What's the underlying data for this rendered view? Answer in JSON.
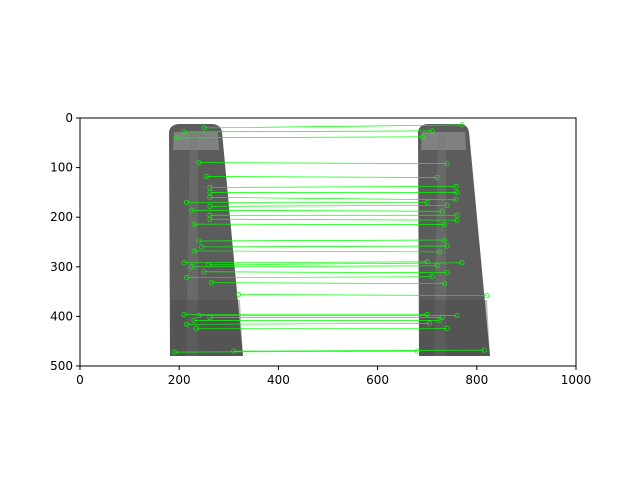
{
  "figure": {
    "axes": {
      "x_ticks": [
        "0",
        "200",
        "400",
        "600",
        "800",
        "1000"
      ],
      "y_ticks": [
        "0",
        "100",
        "200",
        "300",
        "400",
        "500"
      ],
      "x_range": [
        0,
        1000
      ],
      "y_range": [
        500,
        0
      ],
      "grid": false
    },
    "image": {
      "content": "two grayscale photos of a bottle side by side, with green feature-match lines connecting keypoints",
      "background_color": "#ffffff",
      "bottle_color": "#5c5c5c",
      "match_color": "#00ff00",
      "left_bottle_x": [
        180,
        320
      ],
      "right_bottle_x": [
        680,
        820
      ],
      "image_height": 500
    },
    "matches": [
      [
        210,
        28,
        710,
        26
      ],
      [
        250,
        20,
        770,
        14
      ],
      [
        195,
        40,
        690,
        38
      ],
      [
        240,
        90,
        740,
        92
      ],
      [
        255,
        118,
        720,
        120
      ],
      [
        262,
        140,
        758,
        138
      ],
      [
        262,
        150,
        760,
        150
      ],
      [
        262,
        160,
        758,
        165
      ],
      [
        215,
        170,
        700,
        170
      ],
      [
        262,
        178,
        740,
        176
      ],
      [
        225,
        186,
        730,
        188
      ],
      [
        262,
        196,
        760,
        196
      ],
      [
        262,
        204,
        760,
        206
      ],
      [
        230,
        214,
        735,
        215
      ],
      [
        240,
        248,
        735,
        246
      ],
      [
        245,
        260,
        740,
        258
      ],
      [
        230,
        268,
        725,
        270
      ],
      [
        210,
        292,
        700,
        290
      ],
      [
        260,
        296,
        770,
        292
      ],
      [
        225,
        300,
        720,
        298
      ],
      [
        250,
        310,
        740,
        312
      ],
      [
        215,
        322,
        710,
        320
      ],
      [
        265,
        332,
        735,
        334
      ],
      [
        320,
        356,
        820,
        358
      ],
      [
        210,
        396,
        700,
        396
      ],
      [
        240,
        398,
        760,
        398
      ],
      [
        262,
        402,
        730,
        402
      ],
      [
        230,
        408,
        725,
        408
      ],
      [
        215,
        416,
        705,
        414
      ],
      [
        235,
        424,
        740,
        424
      ],
      [
        190,
        472,
        680,
        470
      ],
      [
        310,
        470,
        815,
        468
      ]
    ]
  }
}
